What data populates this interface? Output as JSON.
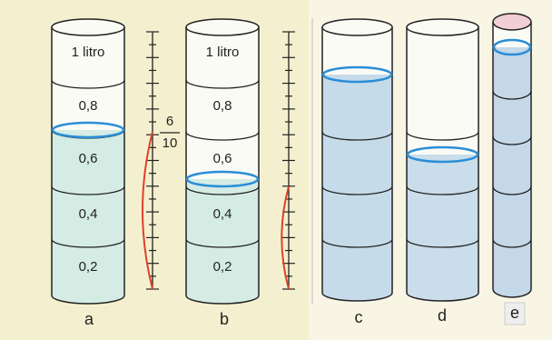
{
  "cylinders": [
    {
      "label": "a",
      "sections": [
        "1 litro",
        "0,8",
        "0,6",
        "0,4",
        "0,2"
      ]
    },
    {
      "label": "b",
      "sections": [
        "1 litro",
        "0,8",
        "0,6",
        "0,4",
        "0,2"
      ]
    },
    {
      "label": "c"
    },
    {
      "label": "d"
    },
    {
      "label": "e"
    }
  ],
  "fraction": {
    "numerator": "6",
    "denominator": "10"
  }
}
